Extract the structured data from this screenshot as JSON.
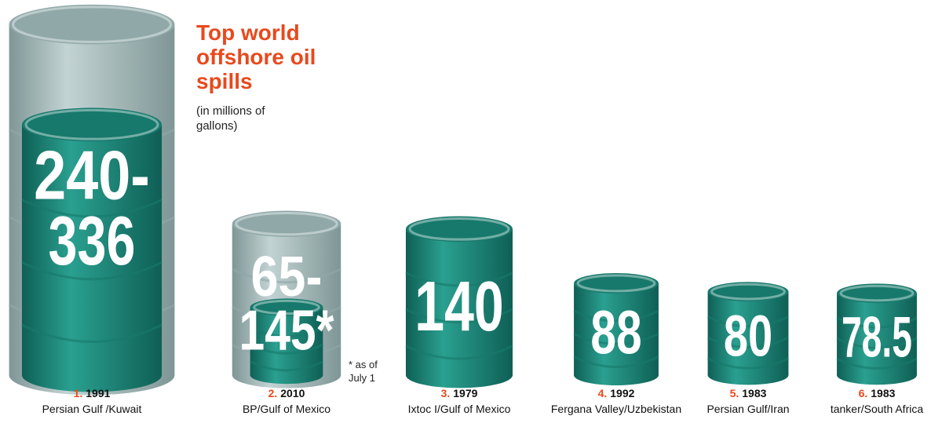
{
  "chart_data": {
    "type": "barrel",
    "title": "Top world offshore oil spills",
    "subtitle": "(in millions of gallons)",
    "ranks": [
      "1.",
      "2.",
      "3.",
      "4.",
      "5.",
      "6."
    ],
    "categories": [
      "1991",
      "2010",
      "1979",
      "1992",
      "1983",
      "1983"
    ],
    "places": [
      "Persian Gulf /Kuwait",
      "BP/Gulf of Mexico",
      "Ixtoc I/Gulf of Mexico",
      "Fergana Valley/Uzbekistan",
      "Persian Gulf/Iran",
      "tanker/South Africa"
    ],
    "values": [
      240,
      65,
      140,
      88,
      80,
      78.5
    ],
    "high_values": [
      336,
      145,
      null,
      null,
      null,
      null
    ],
    "value_labels": [
      "240-336",
      "65-145*",
      "140",
      "88",
      "80",
      "78.5"
    ],
    "note": "* as of July 1",
    "color": "#1f8a7a",
    "high_color": "#a9bcbc",
    "rank_color": "#e8491d"
  }
}
